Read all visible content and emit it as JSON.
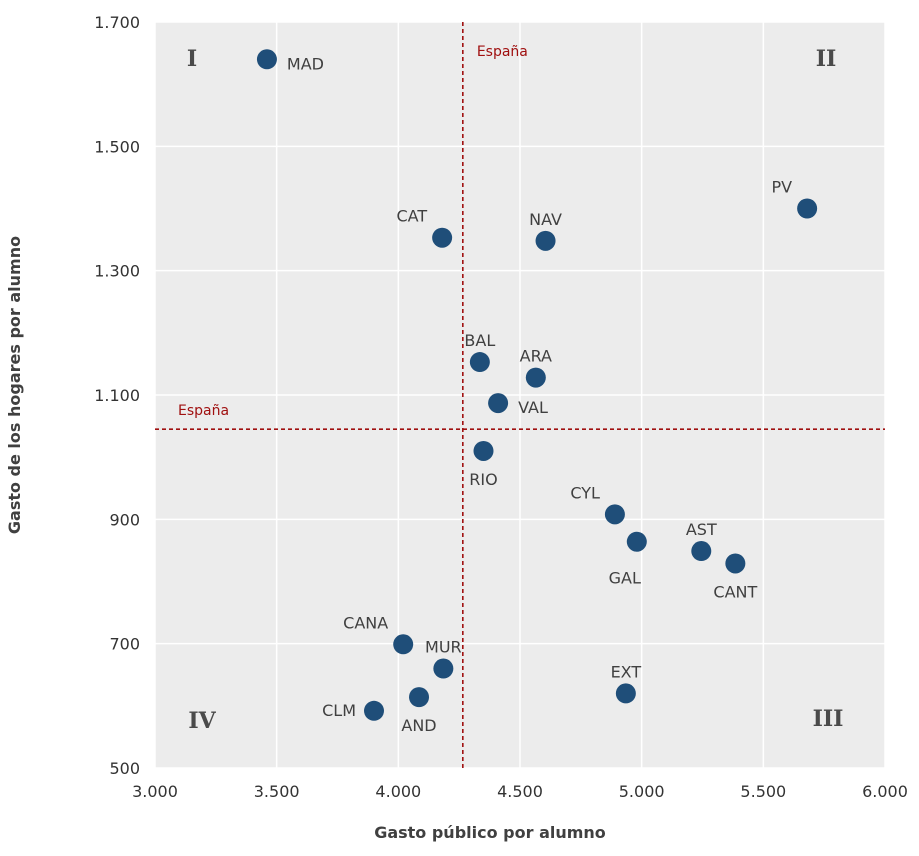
{
  "chart_data": {
    "type": "scatter",
    "xlabel": "Gasto público por alumno",
    "ylabel": "Gasto de los hogares por alumno",
    "xlim": [
      3000,
      6000
    ],
    "ylim": [
      500,
      1700
    ],
    "x_ticks": [
      3000,
      3500,
      4000,
      4500,
      5000,
      5500,
      6000
    ],
    "x_tick_labels": [
      "3.000",
      "3.500",
      "4.000",
      "4.500",
      "5.000",
      "5.500",
      "6.000"
    ],
    "y_ticks": [
      500,
      700,
      900,
      1100,
      1300,
      1500,
      1700
    ],
    "y_tick_labels": [
      "500",
      "700",
      "900",
      "1.100",
      "1.300",
      "1.500",
      "1.700"
    ],
    "grid": true,
    "marker_color": "#1f4e79",
    "reference_lines": [
      {
        "orientation": "vertical",
        "value": 4265,
        "label": "España",
        "color": "#a01010"
      },
      {
        "orientation": "horizontal",
        "value": 1045,
        "label": "España",
        "color": "#a01010"
      }
    ],
    "quadrant_labels": [
      {
        "label": "I",
        "position": "top-left"
      },
      {
        "label": "II",
        "position": "top-right"
      },
      {
        "label": "III",
        "position": "bottom-right"
      },
      {
        "label": "IV",
        "position": "bottom-left"
      }
    ],
    "points": [
      {
        "label": "MAD",
        "x": 3460,
        "y": 1640,
        "anchor": "right"
      },
      {
        "label": "PV",
        "x": 5680,
        "y": 1400,
        "anchor": "above-left"
      },
      {
        "label": "CAT",
        "x": 4180,
        "y": 1353,
        "anchor": "above-left"
      },
      {
        "label": "NAV",
        "x": 4605,
        "y": 1348,
        "anchor": "above"
      },
      {
        "label": "BAL",
        "x": 4335,
        "y": 1153,
        "anchor": "above"
      },
      {
        "label": "ARA",
        "x": 4565,
        "y": 1128,
        "anchor": "above"
      },
      {
        "label": "VAL",
        "x": 4410,
        "y": 1087,
        "anchor": "right"
      },
      {
        "label": "RIO",
        "x": 4350,
        "y": 1010,
        "anchor": "below"
      },
      {
        "label": "CYL",
        "x": 4890,
        "y": 908,
        "anchor": "above-left"
      },
      {
        "label": "GAL",
        "x": 4980,
        "y": 864,
        "anchor": "below-left"
      },
      {
        "label": "AST",
        "x": 5245,
        "y": 849,
        "anchor": "above"
      },
      {
        "label": "CANT",
        "x": 5385,
        "y": 829,
        "anchor": "below"
      },
      {
        "label": "CANA",
        "x": 4020,
        "y": 699,
        "anchor": "above-left"
      },
      {
        "label": "MUR",
        "x": 4185,
        "y": 660,
        "anchor": "above"
      },
      {
        "label": "EXT",
        "x": 4935,
        "y": 620,
        "anchor": "above"
      },
      {
        "label": "AND",
        "x": 4085,
        "y": 614,
        "anchor": "below"
      },
      {
        "label": "CLM",
        "x": 3900,
        "y": 592,
        "anchor": "left"
      }
    ]
  }
}
